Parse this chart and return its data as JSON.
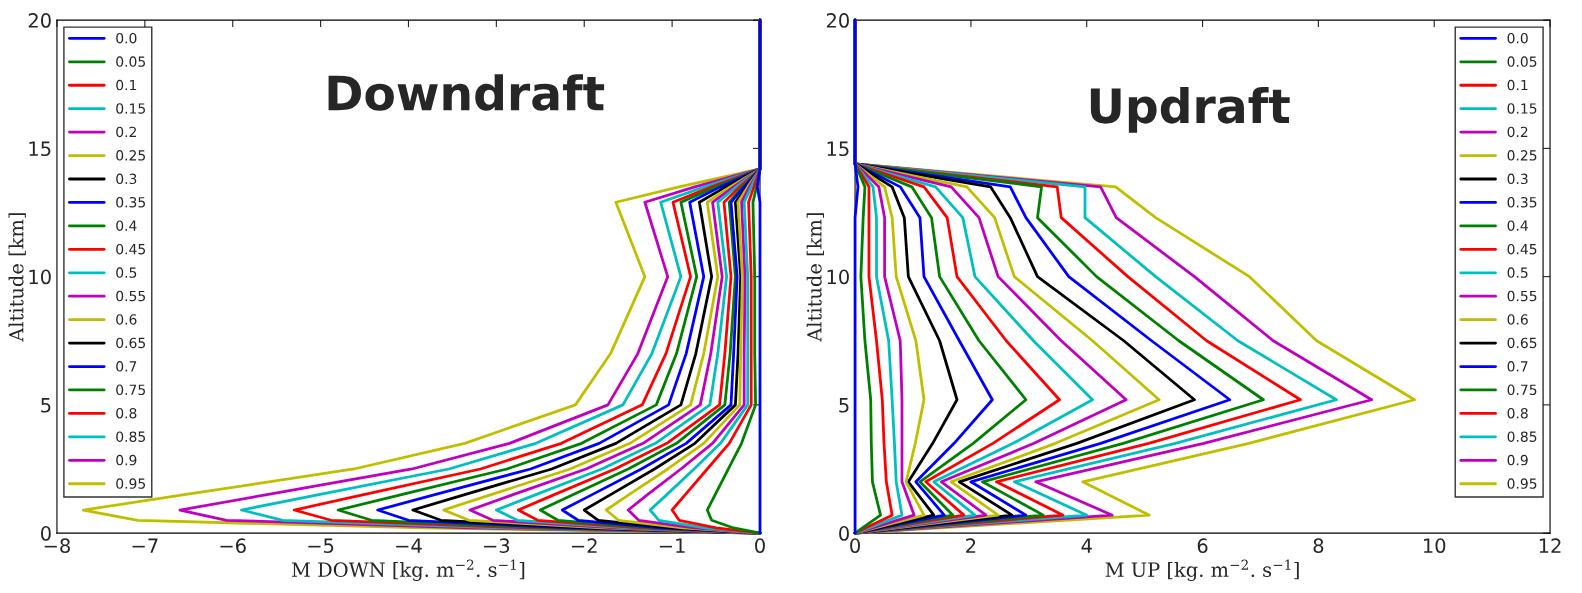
{
  "chart_data": [
    {
      "type": "line",
      "title": "Downdraft",
      "xlabel": "M DOWN [kg. m$^{−2}$. s$^{−1}$]",
      "ylabel": "Altitude [km]",
      "xlim": [
        -8,
        0
      ],
      "ylim": [
        0,
        20
      ],
      "xticks": [
        {
          "value": -8,
          "label": "−8"
        },
        {
          "value": -7,
          "label": "−7"
        },
        {
          "value": -6,
          "label": "−6"
        },
        {
          "value": -5,
          "label": "−5"
        },
        {
          "value": -4,
          "label": "−4"
        },
        {
          "value": -3,
          "label": "−3"
        },
        {
          "value": -2,
          "label": "−2"
        },
        {
          "value": -1,
          "label": "−1"
        },
        0
      ],
      "yticks": [
        0,
        5,
        10,
        15,
        20
      ],
      "legend": "top left",
      "grid": false,
      "marker": "none",
      "line_style": "solid",
      "series": [
        {
          "name": "0.0",
          "color": "#0000ff",
          "x": [
            0,
            0,
            0,
            0,
            0,
            0,
            0,
            0,
            0,
            0,
            0,
            -0.03,
            0,
            0
          ],
          "values": [
            0,
            0.2,
            0.5,
            0.9,
            1.5,
            2.5,
            3.5,
            5,
            7,
            10,
            12.9,
            13.5,
            14.2,
            20
          ]
        },
        {
          "name": "0.05",
          "color": "#008000",
          "x": [
            0,
            -0.3,
            -0.55,
            -0.6,
            -0.51,
            -0.36,
            -0.21,
            -0.05,
            -0.06,
            -0.06,
            -0.08,
            -0.04,
            0,
            0
          ],
          "values": [
            0,
            0.2,
            0.5,
            0.9,
            1.5,
            2.5,
            3.5,
            5,
            7,
            10,
            12.9,
            13.5,
            14.2,
            20
          ]
        },
        {
          "name": "0.1",
          "color": "#ff0000",
          "x": [
            0,
            -0.5,
            -0.92,
            -1.0,
            -0.85,
            -0.6,
            -0.35,
            -0.1,
            -0.1,
            -0.1,
            -0.13,
            -0.07,
            0,
            0
          ],
          "values": [
            0,
            0.2,
            0.5,
            0.9,
            1.5,
            2.5,
            3.5,
            5,
            7,
            10,
            12.9,
            13.5,
            14.2,
            20
          ]
        },
        {
          "name": "0.15",
          "color": "#00bfbf",
          "x": [
            0,
            -0.63,
            -1.15,
            -1.25,
            -1.06,
            -0.75,
            -0.45,
            -0.14,
            -0.14,
            -0.14,
            -0.18,
            -0.1,
            0,
            0
          ],
          "values": [
            0,
            0.2,
            0.5,
            0.9,
            1.5,
            2.5,
            3.5,
            5,
            7,
            10,
            12.9,
            13.5,
            14.2,
            20
          ]
        },
        {
          "name": "0.2",
          "color": "#bf00bf",
          "x": [
            0,
            -0.75,
            -1.38,
            -1.5,
            -1.28,
            -0.9,
            -0.54,
            -0.18,
            -0.18,
            -0.17,
            -0.21,
            -0.12,
            0,
            0
          ],
          "values": [
            0,
            0.2,
            0.5,
            0.9,
            1.5,
            2.5,
            3.5,
            5,
            7,
            10,
            12.9,
            13.5,
            14.2,
            20
          ]
        },
        {
          "name": "0.25",
          "color": "#bfbf00",
          "x": [
            0,
            -0.88,
            -1.61,
            -1.75,
            -1.49,
            -1.05,
            -0.64,
            -0.23,
            -0.22,
            -0.2,
            -0.25,
            -0.14,
            0,
            0
          ],
          "values": [
            0,
            0.2,
            0.5,
            0.9,
            1.5,
            2.5,
            3.5,
            5,
            7,
            10,
            12.9,
            13.5,
            14.2,
            20
          ]
        },
        {
          "name": "0.3",
          "color": "#000000",
          "x": [
            0,
            -1.0,
            -1.84,
            -2.0,
            -1.7,
            -1.2,
            -0.74,
            -0.28,
            -0.25,
            -0.22,
            -0.28,
            -0.15,
            0,
            0
          ],
          "values": [
            0,
            0.2,
            0.5,
            0.9,
            1.5,
            2.5,
            3.5,
            5,
            7,
            10,
            12.9,
            13.5,
            14.2,
            20
          ]
        },
        {
          "name": "0.35",
          "color": "#0000ff",
          "x": [
            0,
            -1.13,
            -2.07,
            -2.25,
            -1.91,
            -1.35,
            -0.84,
            -0.33,
            -0.3,
            -0.26,
            -0.33,
            -0.18,
            0,
            0
          ],
          "values": [
            0,
            0.2,
            0.5,
            0.9,
            1.5,
            2.5,
            3.5,
            5,
            7,
            10,
            12.9,
            13.5,
            14.2,
            20
          ]
        },
        {
          "name": "0.4",
          "color": "#008000",
          "x": [
            0,
            -1.25,
            -2.3,
            -2.5,
            -2.13,
            -1.5,
            -0.95,
            -0.4,
            -0.34,
            -0.28,
            -0.35,
            -0.2,
            0,
            0
          ],
          "values": [
            0,
            0.2,
            0.5,
            0.9,
            1.5,
            2.5,
            3.5,
            5,
            7,
            10,
            12.9,
            13.5,
            14.2,
            20
          ]
        },
        {
          "name": "0.45",
          "color": "#ff0000",
          "x": [
            0,
            -1.38,
            -2.53,
            -2.75,
            -2.34,
            -1.65,
            -1.06,
            -0.46,
            -0.4,
            -0.33,
            -0.41,
            -0.23,
            0,
            0
          ],
          "values": [
            0,
            0.2,
            0.5,
            0.9,
            1.5,
            2.5,
            3.5,
            5,
            7,
            10,
            12.9,
            13.5,
            14.2,
            20
          ]
        },
        {
          "name": "0.5",
          "color": "#00bfbf",
          "x": [
            0,
            -1.5,
            -2.76,
            -3.0,
            -2.55,
            -1.8,
            -1.19,
            -0.57,
            -0.48,
            -0.38,
            -0.48,
            -0.27,
            0,
            0
          ],
          "values": [
            0,
            0.2,
            0.5,
            0.9,
            1.5,
            2.5,
            3.5,
            5,
            7,
            10,
            12.9,
            13.5,
            14.2,
            20
          ]
        },
        {
          "name": "0.55",
          "color": "#bf00bf",
          "x": [
            0,
            -1.65,
            -3.04,
            -3.3,
            -2.81,
            -1.98,
            -1.33,
            -0.68,
            -0.56,
            -0.43,
            -0.54,
            -0.3,
            0,
            0
          ],
          "values": [
            0,
            0.2,
            0.5,
            0.9,
            1.5,
            2.5,
            3.5,
            5,
            7,
            10,
            12.9,
            13.5,
            14.2,
            20
          ]
        },
        {
          "name": "0.6",
          "color": "#bfbf00",
          "x": [
            0,
            -1.8,
            -3.31,
            -3.6,
            -3.06,
            -2.16,
            -1.48,
            -0.79,
            -0.64,
            -0.48,
            -0.6,
            -0.34,
            0,
            0
          ],
          "values": [
            0,
            0.2,
            0.5,
            0.9,
            1.5,
            2.5,
            3.5,
            5,
            7,
            10,
            12.9,
            13.5,
            14.2,
            20
          ]
        },
        {
          "name": "0.65",
          "color": "#000000",
          "x": [
            0,
            -1.98,
            -3.63,
            -3.95,
            -3.36,
            -2.37,
            -1.64,
            -0.9,
            -0.73,
            -0.55,
            -0.69,
            -0.39,
            0,
            0
          ],
          "values": [
            0,
            0.2,
            0.5,
            0.9,
            1.5,
            2.5,
            3.5,
            5,
            7,
            10,
            12.9,
            13.5,
            14.2,
            20
          ]
        },
        {
          "name": "0.7",
          "color": "#0000ff",
          "x": [
            0,
            -2.18,
            -4.0,
            -4.35,
            -3.7,
            -2.61,
            -1.83,
            -1.04,
            -0.84,
            -0.64,
            -0.8,
            -0.45,
            0,
            0
          ],
          "values": [
            0,
            0.2,
            0.5,
            0.9,
            1.5,
            2.5,
            3.5,
            5,
            7,
            10,
            12.9,
            13.5,
            14.2,
            20
          ]
        },
        {
          "name": "0.75",
          "color": "#008000",
          "x": [
            0,
            -2.4,
            -4.42,
            -4.8,
            -4.08,
            -2.88,
            -2.03,
            -1.18,
            -0.95,
            -0.72,
            -0.9,
            -0.5,
            0,
            0
          ],
          "values": [
            0,
            0.2,
            0.5,
            0.9,
            1.5,
            2.5,
            3.5,
            5,
            7,
            10,
            12.9,
            13.5,
            14.2,
            20
          ]
        },
        {
          "name": "0.8",
          "color": "#ff0000",
          "x": [
            0,
            -2.65,
            -4.88,
            -5.3,
            -4.51,
            -3.18,
            -2.26,
            -1.34,
            -1.07,
            -0.79,
            -0.99,
            -0.55,
            0,
            0
          ],
          "values": [
            0,
            0.2,
            0.5,
            0.9,
            1.5,
            2.5,
            3.5,
            5,
            7,
            10,
            12.9,
            13.5,
            14.2,
            20
          ]
        },
        {
          "name": "0.85",
          "color": "#00bfbf",
          "x": [
            0,
            -2.95,
            -5.43,
            -5.9,
            -5.02,
            -3.54,
            -2.55,
            -1.56,
            -1.23,
            -0.9,
            -1.13,
            -0.63,
            0,
            0
          ],
          "values": [
            0,
            0.2,
            0.5,
            0.9,
            1.5,
            2.5,
            3.5,
            5,
            7,
            10,
            12.9,
            13.5,
            14.2,
            20
          ]
        },
        {
          "name": "0.9",
          "color": "#bf00bf",
          "x": [
            0,
            -3.3,
            -6.07,
            -6.6,
            -5.61,
            -3.96,
            -2.85,
            -1.73,
            -1.39,
            -1.05,
            -1.31,
            -0.74,
            0,
            0
          ],
          "values": [
            0,
            0.2,
            0.5,
            0.9,
            1.5,
            2.5,
            3.5,
            5,
            7,
            10,
            12.9,
            13.5,
            14.2,
            20
          ]
        },
        {
          "name": "0.95",
          "color": "#bfbf00",
          "x": [
            0,
            -3.85,
            -7.08,
            -7.7,
            -6.55,
            -4.62,
            -3.36,
            -2.1,
            -1.7,
            -1.31,
            -1.64,
            -0.92,
            0,
            0
          ],
          "values": [
            0,
            0.2,
            0.5,
            0.9,
            1.5,
            2.5,
            3.5,
            5,
            7,
            10,
            12.9,
            13.5,
            14.2,
            20
          ]
        }
      ]
    },
    {
      "type": "line",
      "title": "Updraft",
      "xlabel": "M UP [kg. m$^{−2}$. s$^{−1}$]",
      "ylabel": "Altitude [km]",
      "xlim": [
        0,
        12
      ],
      "ylim": [
        0,
        20
      ],
      "xticks": [
        0,
        2,
        4,
        6,
        8,
        10,
        12
      ],
      "yticks": [
        0,
        5,
        10,
        15,
        20
      ],
      "legend": "top right",
      "grid": false,
      "marker": "none",
      "line_style": "solid",
      "series": [
        {
          "name": "0.0",
          "color": "#0000ff",
          "x": [
            0,
            0,
            0,
            0,
            0,
            0,
            0,
            0,
            0.05,
            0,
            0
          ],
          "values": [
            0,
            0.7,
            2.0,
            3.5,
            5.2,
            7.5,
            10,
            12.3,
            13.5,
            14.4,
            20
          ]
        },
        {
          "name": "0.05",
          "color": "#008000",
          "x": [
            0,
            0.44,
            0.3,
            0.28,
            0.27,
            0.17,
            0.1,
            0.14,
            0.17,
            0,
            0
          ],
          "values": [
            0,
            0.7,
            2.0,
            3.5,
            5.2,
            7.5,
            10,
            12.3,
            13.5,
            14.4,
            20
          ]
        },
        {
          "name": "0.1",
          "color": "#ff0000",
          "x": [
            0,
            0.64,
            0.54,
            0.5,
            0.47,
            0.37,
            0.24,
            0.24,
            0.24,
            0,
            0
          ],
          "values": [
            0,
            0.7,
            2.0,
            3.5,
            5.2,
            7.5,
            10,
            12.3,
            13.5,
            14.4,
            20
          ]
        },
        {
          "name": "0.15",
          "color": "#00bfbf",
          "x": [
            0,
            0.81,
            0.71,
            0.68,
            0.64,
            0.58,
            0.37,
            0.37,
            0.31,
            0,
            0
          ],
          "values": [
            0,
            0.7,
            2.0,
            3.5,
            5.2,
            7.5,
            10,
            12.3,
            13.5,
            14.4,
            20
          ]
        },
        {
          "name": "0.2",
          "color": "#bf00bf",
          "x": [
            0,
            1.02,
            0.81,
            0.81,
            0.81,
            0.78,
            0.51,
            0.51,
            0.41,
            0,
            0
          ],
          "values": [
            0,
            0.7,
            2.0,
            3.5,
            5.2,
            7.5,
            10,
            12.3,
            13.5,
            14.4,
            20
          ]
        },
        {
          "name": "0.25",
          "color": "#bfbf00",
          "x": [
            0,
            1.19,
            0.88,
            1.04,
            1.19,
            1.05,
            0.71,
            0.64,
            0.51,
            0,
            0
          ],
          "values": [
            0,
            0.7,
            2.0,
            3.5,
            5.2,
            7.5,
            10,
            12.3,
            13.5,
            14.4,
            20
          ]
        },
        {
          "name": "0.3",
          "color": "#000000",
          "x": [
            0,
            1.36,
            0.92,
            1.34,
            1.76,
            1.46,
            0.92,
            0.85,
            0.64,
            0,
            0
          ],
          "values": [
            0,
            0.7,
            2.0,
            3.5,
            5.2,
            7.5,
            10,
            12.3,
            13.5,
            14.4,
            20
          ]
        },
        {
          "name": "0.35",
          "color": "#0000ff",
          "x": [
            0,
            1.54,
            1.05,
            1.71,
            2.37,
            1.8,
            1.19,
            1.12,
            0.78,
            0,
            0
          ],
          "values": [
            0,
            0.7,
            2.0,
            3.5,
            5.2,
            7.5,
            10,
            12.3,
            13.5,
            14.4,
            20
          ]
        },
        {
          "name": "0.4",
          "color": "#008000",
          "x": [
            0,
            1.69,
            1.12,
            2.04,
            2.95,
            2.14,
            1.46,
            1.32,
            0.98,
            0,
            0
          ],
          "values": [
            0,
            0.7,
            2.0,
            3.5,
            5.2,
            7.5,
            10,
            12.3,
            13.5,
            14.4,
            20
          ]
        },
        {
          "name": "0.45",
          "color": "#ff0000",
          "x": [
            0,
            1.88,
            1.22,
            2.38,
            3.53,
            2.61,
            1.76,
            1.59,
            1.19,
            0,
            0
          ],
          "values": [
            0,
            0.7,
            2.0,
            3.5,
            5.2,
            7.5,
            10,
            12.3,
            13.5,
            14.4,
            20
          ]
        },
        {
          "name": "0.5",
          "color": "#00bfbf",
          "x": [
            0,
            2.07,
            1.36,
            2.73,
            4.1,
            3.08,
            2.07,
            1.86,
            1.39,
            0,
            0
          ],
          "values": [
            0,
            0.7,
            2.0,
            3.5,
            5.2,
            7.5,
            10,
            12.3,
            13.5,
            14.4,
            20
          ]
        },
        {
          "name": "0.55",
          "color": "#bf00bf",
          "x": [
            0,
            2.26,
            1.49,
            3.09,
            4.68,
            3.56,
            2.47,
            2.14,
            1.66,
            0,
            0
          ],
          "values": [
            0,
            0.7,
            2.0,
            3.5,
            5.2,
            7.5,
            10,
            12.3,
            13.5,
            14.4,
            20
          ]
        },
        {
          "name": "0.6",
          "color": "#bfbf00",
          "x": [
            0,
            2.47,
            1.66,
            3.46,
            5.25,
            4.1,
            2.75,
            2.41,
            1.93,
            0,
            0
          ],
          "values": [
            0,
            0.7,
            2.0,
            3.5,
            5.2,
            7.5,
            10,
            12.3,
            13.5,
            14.4,
            20
          ]
        },
        {
          "name": "0.65",
          "color": "#000000",
          "x": [
            0,
            2.71,
            1.8,
            3.83,
            5.86,
            4.64,
            3.15,
            2.68,
            2.34,
            0,
            0
          ],
          "values": [
            0,
            0.7,
            2.0,
            3.5,
            5.2,
            7.5,
            10,
            12.3,
            13.5,
            14.4,
            20
          ]
        },
        {
          "name": "0.7",
          "color": "#0000ff",
          "x": [
            0,
            2.95,
            2.0,
            4.24,
            6.47,
            5.12,
            3.69,
            2.95,
            2.68,
            0,
            0
          ],
          "values": [
            0,
            0.7,
            2.0,
            3.5,
            5.2,
            7.5,
            10,
            12.3,
            13.5,
            14.4,
            20
          ]
        },
        {
          "name": "0.75",
          "color": "#008000",
          "x": [
            0,
            3.25,
            2.2,
            4.63,
            7.05,
            5.59,
            4.17,
            3.15,
            3.22,
            0,
            0
          ],
          "values": [
            0,
            0.7,
            2.0,
            3.5,
            5.2,
            7.5,
            10,
            12.3,
            13.5,
            14.4,
            20
          ]
        },
        {
          "name": "0.8",
          "color": "#ff0000",
          "x": [
            0,
            3.59,
            2.44,
            5.07,
            7.69,
            6.07,
            4.71,
            3.56,
            3.49,
            0,
            0
          ],
          "values": [
            0,
            0.7,
            2.0,
            3.5,
            5.2,
            7.5,
            10,
            12.3,
            13.5,
            14.4,
            20
          ]
        },
        {
          "name": "0.85",
          "color": "#00bfbf",
          "x": [
            0,
            4.0,
            2.75,
            5.53,
            8.31,
            6.61,
            5.19,
            3.97,
            3.97,
            0,
            0
          ],
          "values": [
            0,
            0.7,
            2.0,
            3.5,
            5.2,
            7.5,
            10,
            12.3,
            13.5,
            14.4,
            20
          ]
        },
        {
          "name": "0.9",
          "color": "#bf00bf",
          "x": [
            0,
            4.44,
            3.12,
            6.02,
            8.92,
            7.22,
            5.86,
            4.51,
            4.24,
            0,
            0
          ],
          "values": [
            0,
            0.7,
            2.0,
            3.5,
            5.2,
            7.5,
            10,
            12.3,
            13.5,
            14.4,
            20
          ]
        },
        {
          "name": "0.95",
          "color": "#bfbf00",
          "x": [
            0,
            5.08,
            3.93,
            6.8,
            9.66,
            7.97,
            6.81,
            5.19,
            4.5,
            0,
            0
          ],
          "values": [
            0,
            0.7,
            2.0,
            3.5,
            5.2,
            7.5,
            10,
            12.3,
            13.5,
            14.4,
            20
          ]
        }
      ]
    }
  ]
}
